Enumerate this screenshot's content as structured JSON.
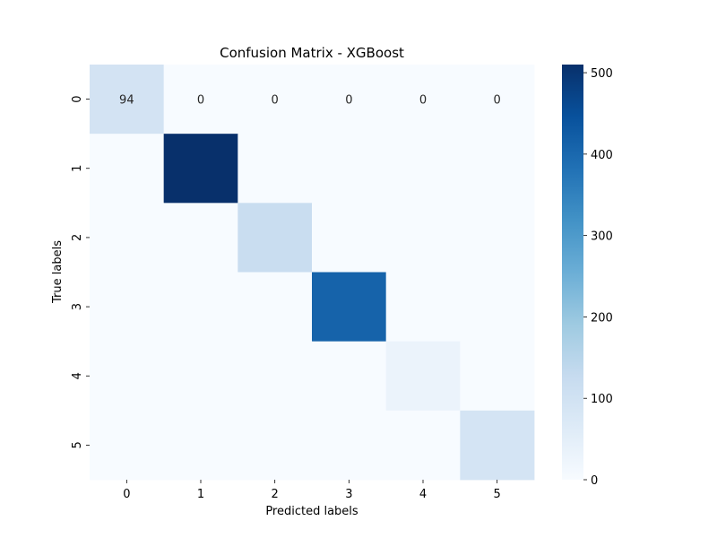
{
  "chart_data": {
    "type": "heatmap",
    "title": "Confusion Matrix - XGBoost",
    "xlabel": "Predicted labels",
    "ylabel": "True labels",
    "x_categories": [
      "0",
      "1",
      "2",
      "3",
      "4",
      "5"
    ],
    "y_categories": [
      "0",
      "1",
      "2",
      "3",
      "4",
      "5"
    ],
    "values": [
      [
        94,
        0,
        0,
        0,
        0,
        0
      ],
      [
        0,
        510,
        0,
        0,
        0,
        0
      ],
      [
        0,
        0,
        120,
        0,
        0,
        0
      ],
      [
        0,
        0,
        0,
        410,
        0,
        0
      ],
      [
        0,
        0,
        0,
        0,
        30,
        0
      ],
      [
        0,
        0,
        0,
        0,
        0,
        90
      ]
    ],
    "visible_annotations": [
      {
        "row": 0,
        "col": 0,
        "text": "94"
      },
      {
        "row": 0,
        "col": 1,
        "text": "0"
      },
      {
        "row": 0,
        "col": 2,
        "text": "0"
      },
      {
        "row": 0,
        "col": 3,
        "text": "0"
      },
      {
        "row": 0,
        "col": 4,
        "text": "0"
      },
      {
        "row": 0,
        "col": 5,
        "text": "0"
      }
    ],
    "colorscale": "Blues",
    "color_range": [
      0,
      510
    ],
    "colorbar_ticks": [
      "0",
      "100",
      "200",
      "300",
      "400",
      "500"
    ],
    "colorbar_tick_values": [
      0,
      100,
      200,
      300,
      400,
      500
    ]
  }
}
